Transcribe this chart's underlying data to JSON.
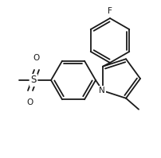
{
  "bg_color": "#ffffff",
  "line_color": "#1a1a1a",
  "line_width": 1.3,
  "font_size": 7.5,
  "figsize": [
    2.03,
    1.99
  ],
  "dpi": 100,
  "xlim": [
    0,
    203
  ],
  "ylim": [
    0,
    199
  ]
}
